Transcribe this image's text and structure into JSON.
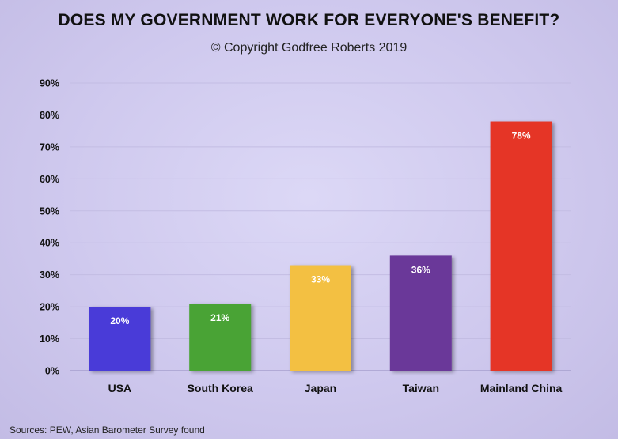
{
  "chart_data": {
    "type": "bar",
    "title": "DOES MY GOVERNMENT WORK FOR EVERYONE'S BENEFIT?",
    "subtitle": "© Copyright Godfree Roberts 2019",
    "categories": [
      "USA",
      "South Korea",
      "Japan",
      "Taiwan",
      "Mainland China"
    ],
    "values": [
      20,
      21,
      33,
      36,
      78
    ],
    "data_labels": [
      "20%",
      "21%",
      "33%",
      "36%",
      "78%"
    ],
    "colors": [
      "#4a3bd8",
      "#4aa336",
      "#f3c043",
      "#6a3799",
      "#e53426"
    ],
    "ylim": [
      0,
      90
    ],
    "yticks": [
      0,
      10,
      20,
      30,
      40,
      50,
      60,
      70,
      80,
      90
    ],
    "ytick_labels": [
      "0%",
      "10%",
      "20%",
      "30%",
      "40%",
      "50%",
      "60%",
      "70%",
      "80%",
      "90%"
    ],
    "grid": true,
    "legend": "none",
    "xlabel": "",
    "ylabel": ""
  },
  "footer": {
    "source": "Sources: PEW, Asian Barometer Survey found"
  }
}
